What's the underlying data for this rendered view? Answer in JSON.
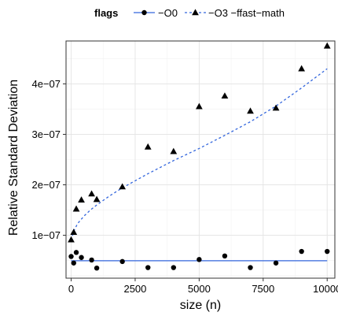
{
  "chart_data": {
    "type": "scatter",
    "title": "",
    "xlabel": "size (n)",
    "ylabel": "Relative Standard Deviation",
    "xlim": [
      -200,
      10300
    ],
    "ylim": [
      1.5e-08,
      4.85e-07
    ],
    "x_ticks": [
      0,
      2500,
      5000,
      7500,
      10000
    ],
    "x_tick_labels": [
      "0",
      "2500",
      "5000",
      "7500",
      "10000"
    ],
    "y_ticks": [
      1e-07,
      2e-07,
      3e-07,
      4e-07
    ],
    "y_tick_labels": [
      "1e−07",
      "2e−07",
      "3e−07",
      "4e−07"
    ],
    "grid": true,
    "legend": {
      "title": "flags",
      "position": "top"
    },
    "series": [
      {
        "name": "−O0",
        "marker": "circle",
        "color": "#000000",
        "fit_color": "#3366dd",
        "fit_style": "solid",
        "points": [
          {
            "x": 0,
            "y": 5.8e-08
          },
          {
            "x": 100,
            "y": 4.5e-08
          },
          {
            "x": 200,
            "y": 6.6e-08
          },
          {
            "x": 400,
            "y": 5.6e-08
          },
          {
            "x": 800,
            "y": 5.1e-08
          },
          {
            "x": 1000,
            "y": 3.5e-08
          },
          {
            "x": 2000,
            "y": 4.8e-08
          },
          {
            "x": 3000,
            "y": 3.6e-08
          },
          {
            "x": 4000,
            "y": 3.6e-08
          },
          {
            "x": 5000,
            "y": 5.2e-08
          },
          {
            "x": 6000,
            "y": 5.9e-08
          },
          {
            "x": 7000,
            "y": 3.6e-08
          },
          {
            "x": 8000,
            "y": 4.5e-08
          },
          {
            "x": 9000,
            "y": 6.8e-08
          },
          {
            "x": 10000,
            "y": 6.8e-08
          }
        ],
        "fit": [
          {
            "x": 0,
            "y": 4.95e-08
          },
          {
            "x": 10000,
            "y": 4.95e-08
          }
        ]
      },
      {
        "name": "−O3 −ffast−math",
        "marker": "triangle",
        "color": "#000000",
        "fit_color": "#3366dd",
        "fit_style": "dashed",
        "points": [
          {
            "x": 0,
            "y": 9.1e-08
          },
          {
            "x": 100,
            "y": 1.06e-07
          },
          {
            "x": 200,
            "y": 1.52e-07
          },
          {
            "x": 400,
            "y": 1.7e-07
          },
          {
            "x": 800,
            "y": 1.82e-07
          },
          {
            "x": 1000,
            "y": 1.71e-07
          },
          {
            "x": 2000,
            "y": 1.96e-07
          },
          {
            "x": 3000,
            "y": 2.75e-07
          },
          {
            "x": 4000,
            "y": 2.66e-07
          },
          {
            "x": 5000,
            "y": 3.55e-07
          },
          {
            "x": 6000,
            "y": 3.76e-07
          },
          {
            "x": 7000,
            "y": 3.46e-07
          },
          {
            "x": 8000,
            "y": 3.52e-07
          },
          {
            "x": 9000,
            "y": 4.3e-07
          },
          {
            "x": 10000,
            "y": 4.75e-07
          }
        ],
        "fit": [
          {
            "x": 0,
            "y": 9e-08
          },
          {
            "x": 100,
            "y": 1.08e-07
          },
          {
            "x": 250,
            "y": 1.23e-07
          },
          {
            "x": 500,
            "y": 1.38e-07
          },
          {
            "x": 750,
            "y": 1.5e-07
          },
          {
            "x": 1000,
            "y": 1.6e-07
          },
          {
            "x": 1500,
            "y": 1.78e-07
          },
          {
            "x": 2000,
            "y": 1.94e-07
          },
          {
            "x": 2500,
            "y": 2.08e-07
          },
          {
            "x": 3000,
            "y": 2.22e-07
          },
          {
            "x": 3500,
            "y": 2.35e-07
          },
          {
            "x": 4000,
            "y": 2.48e-07
          },
          {
            "x": 4500,
            "y": 2.6e-07
          },
          {
            "x": 5000,
            "y": 2.72e-07
          },
          {
            "x": 6000,
            "y": 2.98e-07
          },
          {
            "x": 7000,
            "y": 3.25e-07
          },
          {
            "x": 8000,
            "y": 3.56e-07
          },
          {
            "x": 9000,
            "y": 3.92e-07
          },
          {
            "x": 10000,
            "y": 4.3e-07
          }
        ]
      }
    ]
  }
}
